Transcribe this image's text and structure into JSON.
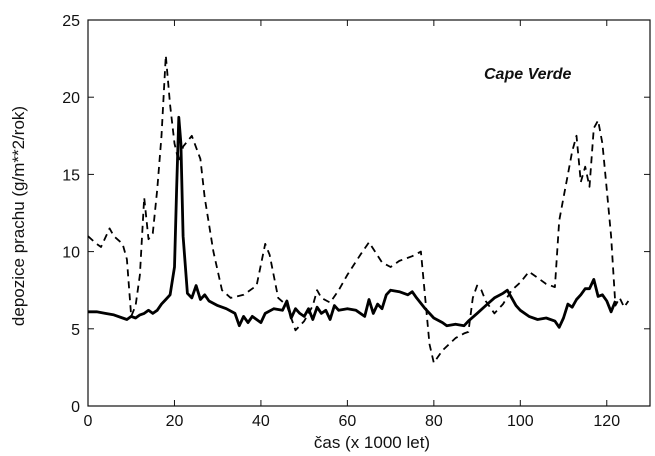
{
  "chart_data": {
    "type": "line",
    "title": "",
    "annotation": "Cape Verde",
    "xlabel": "čas (x 1000 let)",
    "ylabel": "depozice prachu (g/m**2/rok)",
    "xlim": [
      0,
      130
    ],
    "ylim": [
      0,
      25
    ],
    "x_ticks": [
      0,
      20,
      40,
      60,
      80,
      100,
      120
    ],
    "y_ticks": [
      0,
      5,
      10,
      15,
      20,
      25
    ],
    "grid": false,
    "legend": "none",
    "series": [
      {
        "style": "solid-thick",
        "color": "#000000",
        "points": [
          [
            0,
            6.1
          ],
          [
            2,
            6.1
          ],
          [
            4,
            6.0
          ],
          [
            6,
            5.9
          ],
          [
            8,
            5.7
          ],
          [
            9,
            5.6
          ],
          [
            10,
            5.8
          ],
          [
            11,
            5.7
          ],
          [
            12,
            5.9
          ],
          [
            13,
            6.0
          ],
          [
            14,
            6.2
          ],
          [
            15,
            6.0
          ],
          [
            16,
            6.2
          ],
          [
            17,
            6.6
          ],
          [
            18,
            6.9
          ],
          [
            19,
            7.2
          ],
          [
            20,
            9.0
          ],
          [
            20.5,
            14.0
          ],
          [
            21,
            18.7
          ],
          [
            21.5,
            17.0
          ],
          [
            22,
            11.0
          ],
          [
            23,
            7.3
          ],
          [
            24,
            7.0
          ],
          [
            25,
            7.8
          ],
          [
            26,
            6.9
          ],
          [
            27,
            7.2
          ],
          [
            28,
            6.8
          ],
          [
            30,
            6.5
          ],
          [
            32,
            6.3
          ],
          [
            34,
            6.0
          ],
          [
            35,
            5.2
          ],
          [
            36,
            5.8
          ],
          [
            37,
            5.4
          ],
          [
            38,
            5.8
          ],
          [
            40,
            5.4
          ],
          [
            41,
            6.0
          ],
          [
            43,
            6.3
          ],
          [
            45,
            6.2
          ],
          [
            46,
            6.8
          ],
          [
            47,
            5.7
          ],
          [
            48,
            6.3
          ],
          [
            49,
            6.0
          ],
          [
            50,
            5.8
          ],
          [
            51,
            6.3
          ],
          [
            52,
            5.6
          ],
          [
            53,
            6.4
          ],
          [
            54,
            6.0
          ],
          [
            55,
            6.2
          ],
          [
            56,
            5.6
          ],
          [
            57,
            6.5
          ],
          [
            58,
            6.2
          ],
          [
            60,
            6.3
          ],
          [
            62,
            6.2
          ],
          [
            64,
            5.8
          ],
          [
            65,
            6.9
          ],
          [
            66,
            6.0
          ],
          [
            67,
            6.6
          ],
          [
            68,
            6.3
          ],
          [
            69,
            7.2
          ],
          [
            70,
            7.5
          ],
          [
            72,
            7.4
          ],
          [
            74,
            7.2
          ],
          [
            75,
            7.4
          ],
          [
            76,
            7.0
          ],
          [
            78,
            6.3
          ],
          [
            80,
            5.7
          ],
          [
            82,
            5.4
          ],
          [
            83,
            5.2
          ],
          [
            85,
            5.3
          ],
          [
            87,
            5.2
          ],
          [
            88,
            5.5
          ],
          [
            90,
            6.0
          ],
          [
            92,
            6.5
          ],
          [
            94,
            7.0
          ],
          [
            96,
            7.3
          ],
          [
            97,
            7.5
          ],
          [
            98,
            7.0
          ],
          [
            99,
            6.5
          ],
          [
            100,
            6.2
          ],
          [
            102,
            5.8
          ],
          [
            104,
            5.6
          ],
          [
            106,
            5.7
          ],
          [
            108,
            5.5
          ],
          [
            109,
            5.1
          ],
          [
            110,
            5.7
          ],
          [
            111,
            6.6
          ],
          [
            112,
            6.4
          ],
          [
            113,
            6.9
          ],
          [
            114,
            7.2
          ],
          [
            115,
            7.6
          ],
          [
            116,
            7.6
          ],
          [
            117,
            8.2
          ],
          [
            118,
            7.1
          ],
          [
            119,
            7.2
          ],
          [
            120,
            6.8
          ],
          [
            121,
            6.1
          ],
          [
            122,
            6.8
          ]
        ]
      },
      {
        "style": "dashed",
        "color": "#000000",
        "points": [
          [
            0,
            11.0
          ],
          [
            2,
            10.5
          ],
          [
            3,
            10.3
          ],
          [
            5,
            11.5
          ],
          [
            6,
            11.0
          ],
          [
            8,
            10.5
          ],
          [
            9,
            9.5
          ],
          [
            10,
            5.8
          ],
          [
            11,
            6.5
          ],
          [
            12,
            8.5
          ],
          [
            13,
            13.5
          ],
          [
            14,
            10.8
          ],
          [
            15,
            11.2
          ],
          [
            16,
            14.0
          ],
          [
            17,
            17.5
          ],
          [
            18,
            22.7
          ],
          [
            19,
            19.5
          ],
          [
            20,
            17.0
          ],
          [
            21,
            15.8
          ],
          [
            22,
            16.8
          ],
          [
            24,
            17.5
          ],
          [
            26,
            16.0
          ],
          [
            27,
            13.5
          ],
          [
            29,
            10.0
          ],
          [
            31,
            7.5
          ],
          [
            33,
            7.0
          ],
          [
            36,
            7.2
          ],
          [
            39,
            7.8
          ],
          [
            41,
            10.5
          ],
          [
            42,
            9.8
          ],
          [
            44,
            7.0
          ],
          [
            46,
            6.5
          ],
          [
            48,
            4.9
          ],
          [
            50,
            5.5
          ],
          [
            52,
            6.5
          ],
          [
            53,
            7.5
          ],
          [
            54,
            7.0
          ],
          [
            56,
            6.7
          ],
          [
            58,
            7.5
          ],
          [
            60,
            8.5
          ],
          [
            63,
            9.8
          ],
          [
            65,
            10.6
          ],
          [
            68,
            9.3
          ],
          [
            70,
            9.0
          ],
          [
            72,
            9.4
          ],
          [
            75,
            9.7
          ],
          [
            77,
            10.0
          ],
          [
            78,
            7.0
          ],
          [
            79,
            4.0
          ],
          [
            80,
            2.8
          ],
          [
            82,
            3.6
          ],
          [
            85,
            4.4
          ],
          [
            87,
            4.7
          ],
          [
            88,
            4.8
          ],
          [
            89,
            7.0
          ],
          [
            90,
            7.8
          ],
          [
            91,
            7.5
          ],
          [
            92,
            6.8
          ],
          [
            94,
            6.0
          ],
          [
            96,
            6.6
          ],
          [
            98,
            7.5
          ],
          [
            100,
            8.0
          ],
          [
            102,
            8.7
          ],
          [
            104,
            8.3
          ],
          [
            106,
            7.9
          ],
          [
            108,
            7.7
          ],
          [
            109,
            12.0
          ],
          [
            110,
            13.5
          ],
          [
            111,
            15.0
          ],
          [
            112,
            16.5
          ],
          [
            113,
            17.5
          ],
          [
            114,
            14.5
          ],
          [
            115,
            15.5
          ],
          [
            116,
            14.2
          ],
          [
            117,
            18.0
          ],
          [
            118,
            18.5
          ],
          [
            119,
            17.0
          ],
          [
            120,
            14.0
          ],
          [
            121,
            11.0
          ],
          [
            122,
            6.5
          ],
          [
            123,
            7.0
          ],
          [
            124,
            6.4
          ],
          [
            125,
            6.8
          ]
        ]
      }
    ]
  }
}
